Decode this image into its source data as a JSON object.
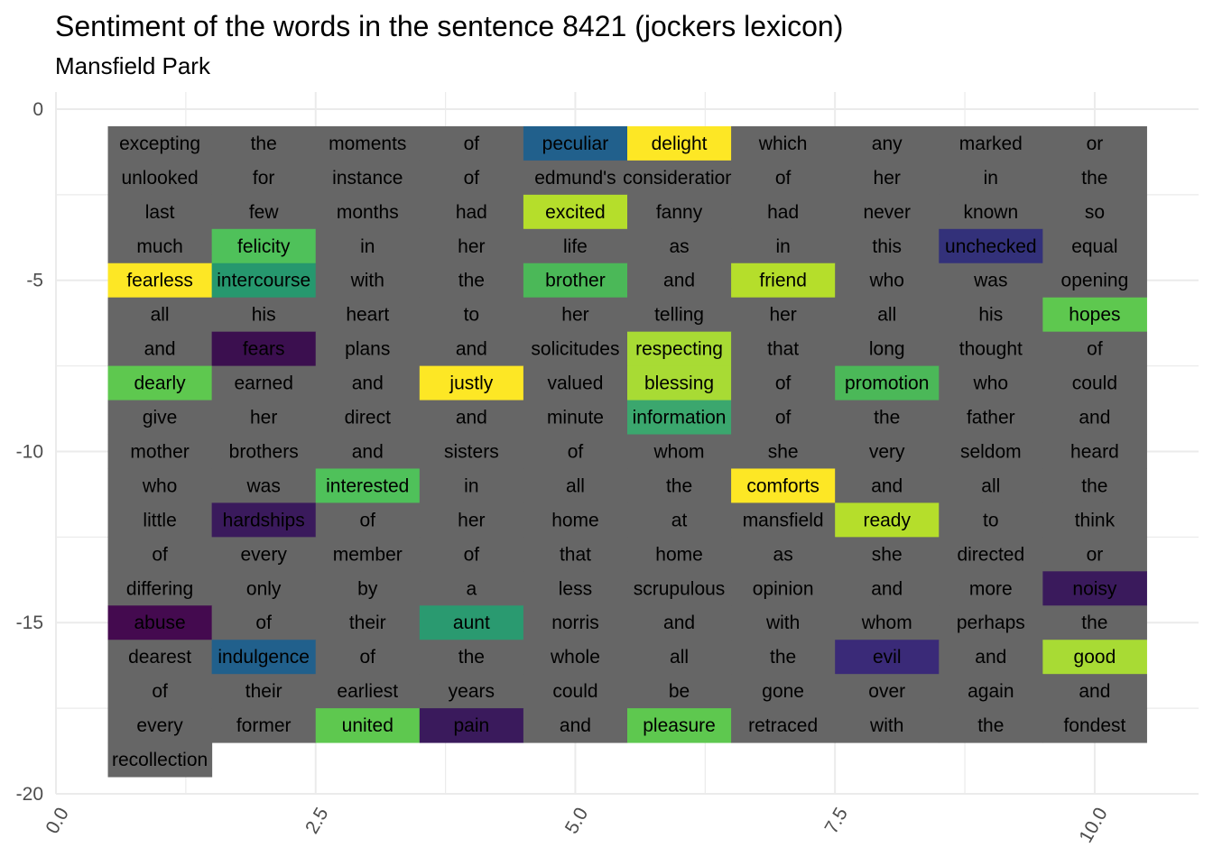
{
  "chart_data": {
    "type": "heatmap",
    "title": "Sentiment of the words in the sentence 8421 (jockers lexicon)",
    "subtitle": "Mansfield Park",
    "xlabel": "",
    "ylabel": "",
    "xlim": [
      0,
      11
    ],
    "ylim": [
      -20,
      0
    ],
    "x_ticks": [
      "0.0",
      "2.5",
      "5.0",
      "7.5",
      "10.0"
    ],
    "y_ticks": [
      "0",
      "-5",
      "-10",
      "-15",
      "-20"
    ],
    "grid": true,
    "legend": "none",
    "neutral_color": "#666666",
    "columns": 10,
    "words": [
      "excepting",
      "the",
      "moments",
      "of",
      "peculiar",
      "delight",
      "which",
      "any",
      "marked",
      "or",
      "unlooked",
      "for",
      "instance",
      "of",
      "edmund's",
      "consideration",
      "of",
      "her",
      "in",
      "the",
      "last",
      "few",
      "months",
      "had",
      "excited",
      "fanny",
      "had",
      "never",
      "known",
      "so",
      "much",
      "felicity",
      "in",
      "her",
      "life",
      "as",
      "in",
      "this",
      "unchecked",
      "equal",
      "fearless",
      "intercourse",
      "with",
      "the",
      "brother",
      "and",
      "friend",
      "who",
      "was",
      "opening",
      "all",
      "his",
      "heart",
      "to",
      "her",
      "telling",
      "her",
      "all",
      "his",
      "hopes",
      "and",
      "fears",
      "plans",
      "and",
      "solicitudes",
      "respecting",
      "that",
      "long",
      "thought",
      "of",
      "dearly",
      "earned",
      "and",
      "justly",
      "valued",
      "blessing",
      "of",
      "promotion",
      "who",
      "could",
      "give",
      "her",
      "direct",
      "and",
      "minute",
      "information",
      "of",
      "the",
      "father",
      "and",
      "mother",
      "brothers",
      "and",
      "sisters",
      "of",
      "whom",
      "she",
      "very",
      "seldom",
      "heard",
      "who",
      "was",
      "interested",
      "in",
      "all",
      "the",
      "comforts",
      "and",
      "all",
      "the",
      "little",
      "hardships",
      "of",
      "her",
      "home",
      "at",
      "mansfield",
      "ready",
      "to",
      "think",
      "of",
      "every",
      "member",
      "of",
      "that",
      "home",
      "as",
      "she",
      "directed",
      "or",
      "differing",
      "only",
      "by",
      "a",
      "less",
      "scrupulous",
      "opinion",
      "and",
      "more",
      "noisy",
      "abuse",
      "of",
      "their",
      "aunt",
      "norris",
      "and",
      "with",
      "whom",
      "perhaps",
      "the",
      "dearest",
      "indulgence",
      "of",
      "the",
      "whole",
      "all",
      "the",
      "evil",
      "and",
      "good",
      "of",
      "their",
      "earliest",
      "years",
      "could",
      "be",
      "gone",
      "over",
      "again",
      "and",
      "every",
      "former",
      "united",
      "pain",
      "and",
      "pleasure",
      "retraced",
      "with",
      "the",
      "fondest",
      "recollection"
    ],
    "highlights": {
      "peculiar": "#21608c",
      "delight": "#fde725",
      "excited": "#b5de2b",
      "felicity": "#4fc15a",
      "unchecked": "#33317a",
      "fearless": "#fde725",
      "intercourse": "#26986e",
      "brother": "#4bb858",
      "friend": "#b5de2b",
      "hopes": "#5ec84f",
      "fears": "#3b0f4f",
      "respecting": "#a8db34",
      "dearly": "#5ec84f",
      "justly": "#fde725",
      "blessing": "#a8db34",
      "promotion": "#4bb858",
      "information": "#3ba76e",
      "interested": "#4fc15a",
      "comforts": "#fde725",
      "hardships": "#3a1a5c",
      "ready": "#b5de2b",
      "noisy": "#3a1a5c",
      "abuse": "#440a4f",
      "aunt": "#2a9a70",
      "indulgence": "#21608c",
      "evil": "#3a2a78",
      "good": "#a8db34",
      "united": "#5ec84f",
      "pain": "#3a1a5c",
      "pleasure": "#5ec84f"
    }
  }
}
